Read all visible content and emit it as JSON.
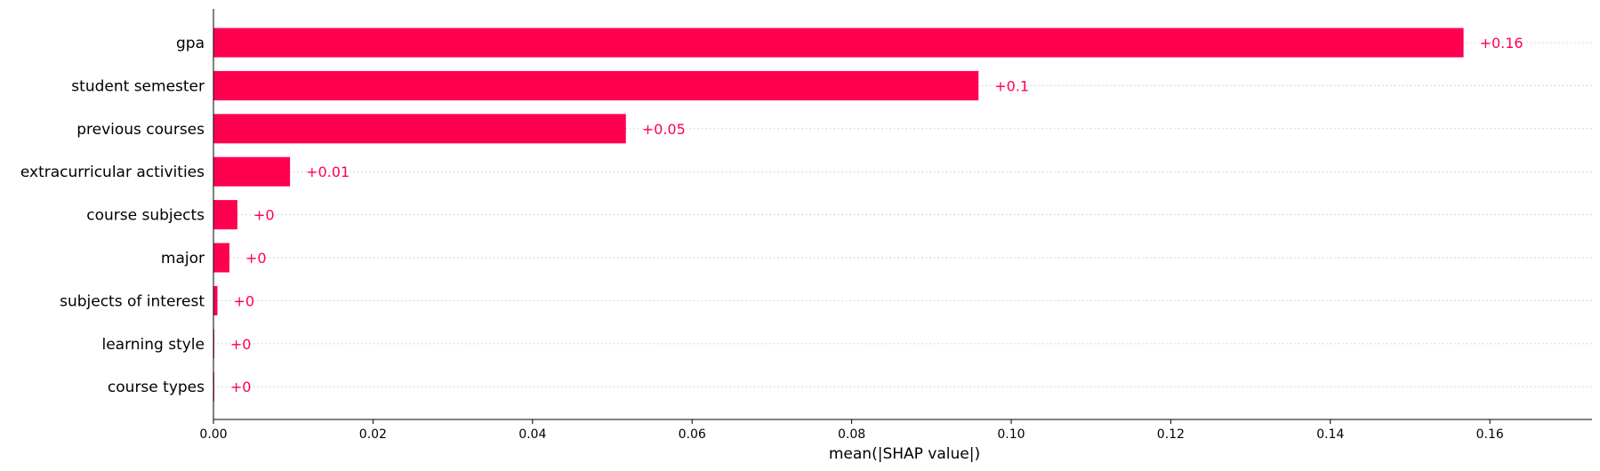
{
  "colors": {
    "bar": "#ff0051",
    "data_label": "#ff0051",
    "grid": "#cccccc",
    "axis": "#000000"
  },
  "chart_data": {
    "type": "bar",
    "orientation": "horizontal",
    "categories": [
      "gpa",
      "student semester",
      "previous courses",
      "extracurricular activities",
      "course subjects",
      "major",
      "subjects of interest",
      "learning style",
      "course types"
    ],
    "values": [
      0.1567,
      0.0959,
      0.0517,
      0.0096,
      0.003,
      0.002,
      0.0005,
      0.0001,
      0.0001
    ],
    "data_labels": [
      "+0.16",
      "+0.1",
      "+0.05",
      "+0.01",
      "+0",
      "+0",
      "+0",
      "+0",
      "+0"
    ],
    "xlabel": "mean(|SHAP value|)",
    "ylabel": "",
    "xlim": [
      0,
      0.1728
    ],
    "x_ticks": [
      0.0,
      0.02,
      0.04,
      0.06,
      0.08,
      0.1,
      0.12,
      0.14,
      0.16
    ],
    "x_tick_labels": [
      "0.00",
      "0.02",
      "0.04",
      "0.06",
      "0.08",
      "0.10",
      "0.12",
      "0.14",
      "0.16"
    ],
    "grid": "horizontal dotted",
    "legend": "none"
  }
}
